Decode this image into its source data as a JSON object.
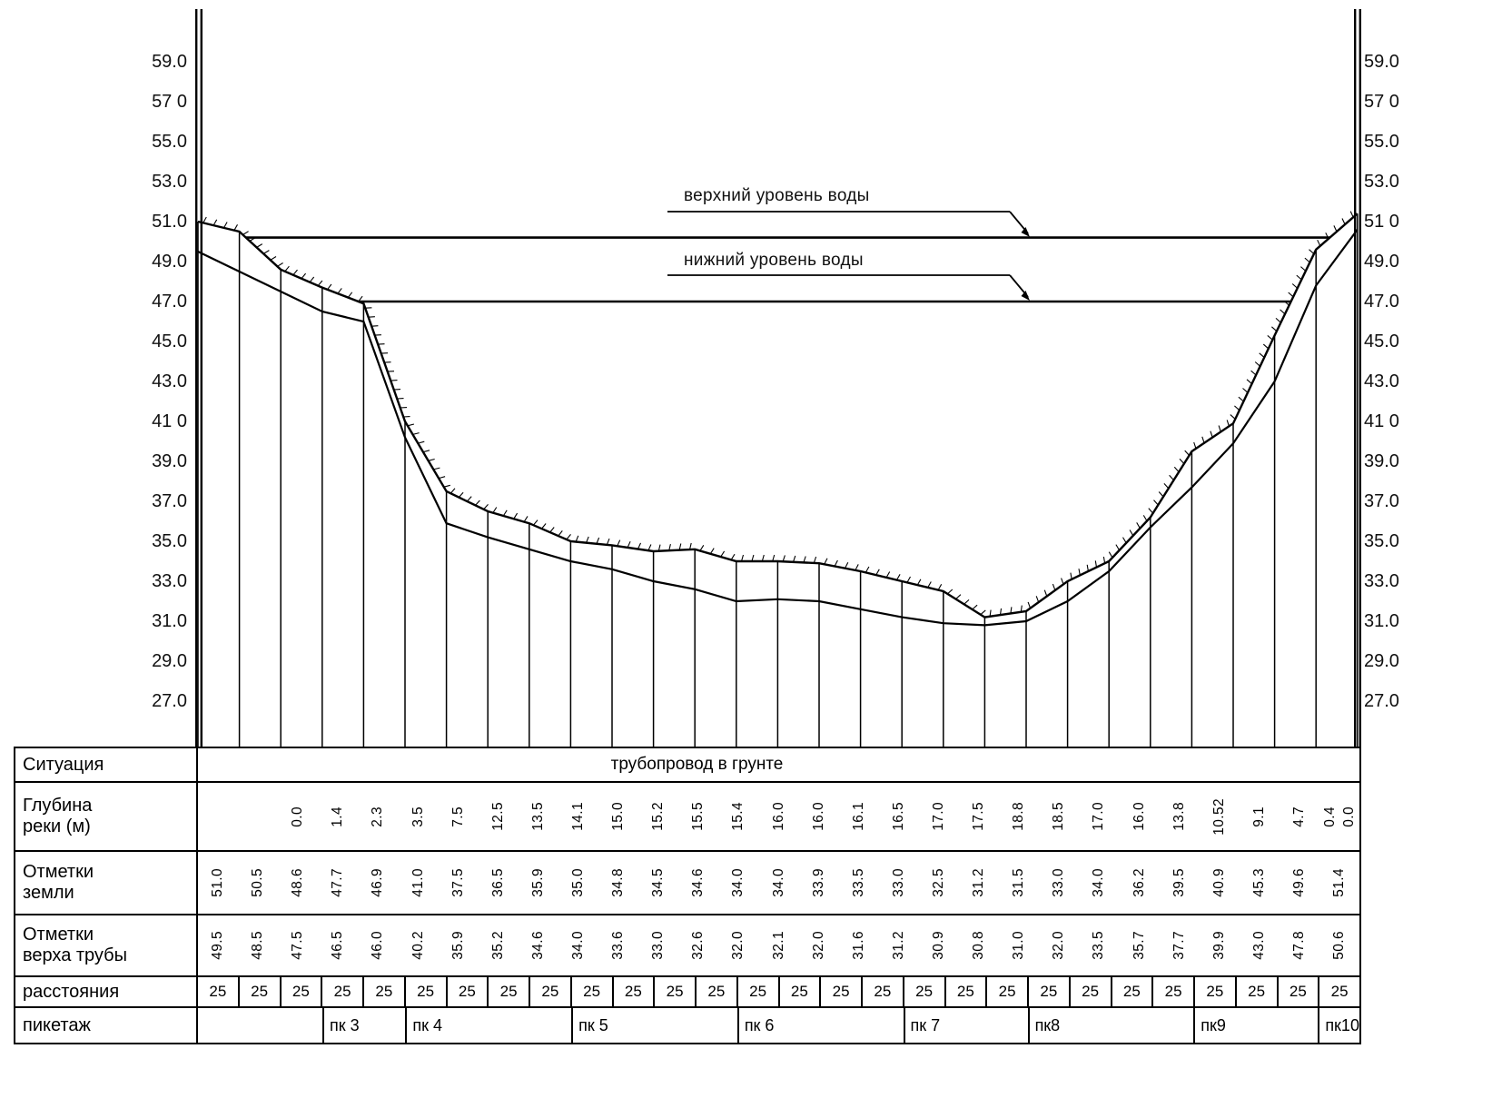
{
  "axis": {
    "left_labels": [
      "59.0",
      "57 0",
      "55.0",
      "53.0",
      "51.0",
      "49.0",
      "47.0",
      "45.0",
      "43.0",
      "41 0",
      "39.0",
      "37.0",
      "35.0",
      "33.0",
      "31.0",
      "29.0",
      "27.0"
    ],
    "right_labels": [
      "59.0",
      "57 0",
      "55.0",
      "53.0",
      "51 0",
      "49.0",
      "47.0",
      "45.0",
      "43.0",
      "41 0",
      "39.0",
      "37.0",
      "35.0",
      "33.0",
      "31.0",
      "29.0",
      "27.0"
    ]
  },
  "chart_data": {
    "type": "line",
    "x_interval_m": 25,
    "ylim": [
      27,
      59
    ],
    "grid": false,
    "series": [
      {
        "name": "Отметки земли",
        "values": [
          "51.0",
          "50.5",
          "48.6",
          "47.7",
          "46.9",
          "41.0",
          "37.5",
          "36.5",
          "35.9",
          "35.0",
          "34.8",
          "34.5",
          "34.6",
          "34.0",
          "34.0",
          "33.9",
          "33.5",
          "33.0",
          "32.5",
          "31.2",
          "31.5",
          "33.0",
          "34.0",
          "36.2",
          "39.5",
          "40.9",
          "45.3",
          "49.6",
          "51.4"
        ]
      },
      {
        "name": "Отметки верха трубы",
        "values": [
          "49.5",
          "48.5",
          "47.5",
          "46.5",
          "46.0",
          "40.2",
          "35.9",
          "35.2",
          "34.6",
          "34.0",
          "33.6",
          "33.0",
          "32.6",
          "32.0",
          "32.1",
          "32.0",
          "31.6",
          "31.2",
          "30.9",
          "30.8",
          "31.0",
          "32.0",
          "33.5",
          "35.7",
          "37.7",
          "39.9",
          "43.0",
          "47.8",
          "50.6"
        ]
      }
    ],
    "water_levels": {
      "upper": {
        "label": "верхний уровень воды",
        "elev": 50.2
      },
      "lower": {
        "label": "нижний уровень воды",
        "elev": 47.0
      }
    }
  },
  "table": {
    "situation": {
      "header": "Ситуация",
      "value": "трубопровод в грунте"
    },
    "depth": {
      "header": "Глубина\nреки (м)",
      "values": [
        "",
        "",
        "0.0",
        "1.4",
        "2.3",
        "3.5",
        "7.5",
        "12.5",
        "13.5",
        "14.1",
        "15.0",
        "15.2",
        "15.5",
        "15.4",
        "16.0",
        "16.0",
        "16.1",
        "16.5",
        "17.0",
        "17.5",
        "18.8",
        "18.5",
        "17.0",
        "16.0",
        "13.8",
        "10.52",
        "9.1",
        "4.7",
        [
          "0.4",
          "0.0"
        ]
      ]
    },
    "ground": {
      "header": "Отметки\nземли"
    },
    "pipe": {
      "header": "Отметки\nверха трубы"
    },
    "distances": {
      "header": "расстояния",
      "values": [
        "25",
        "25",
        "25",
        "25",
        "25",
        "25",
        "25",
        "25",
        "25",
        "25",
        "25",
        "25",
        "25",
        "25",
        "25",
        "25",
        "25",
        "25",
        "25",
        "25",
        "25",
        "25",
        "25",
        "25",
        "25",
        "25",
        "25",
        "25"
      ]
    },
    "pickets": {
      "header": "пикетаж",
      "cells": [
        {
          "label": "",
          "span": 3
        },
        {
          "label": "пк 3",
          "span": 2
        },
        {
          "label": "пк 4",
          "span": 4
        },
        {
          "label": "пк 5",
          "span": 4
        },
        {
          "label": "пк 6",
          "span": 4
        },
        {
          "label": "пк 7",
          "span": 3
        },
        {
          "label": "пк8",
          "span": 4
        },
        {
          "label": "пк9",
          "span": 3
        },
        {
          "label": "пк10",
          "span": 1
        }
      ]
    }
  }
}
